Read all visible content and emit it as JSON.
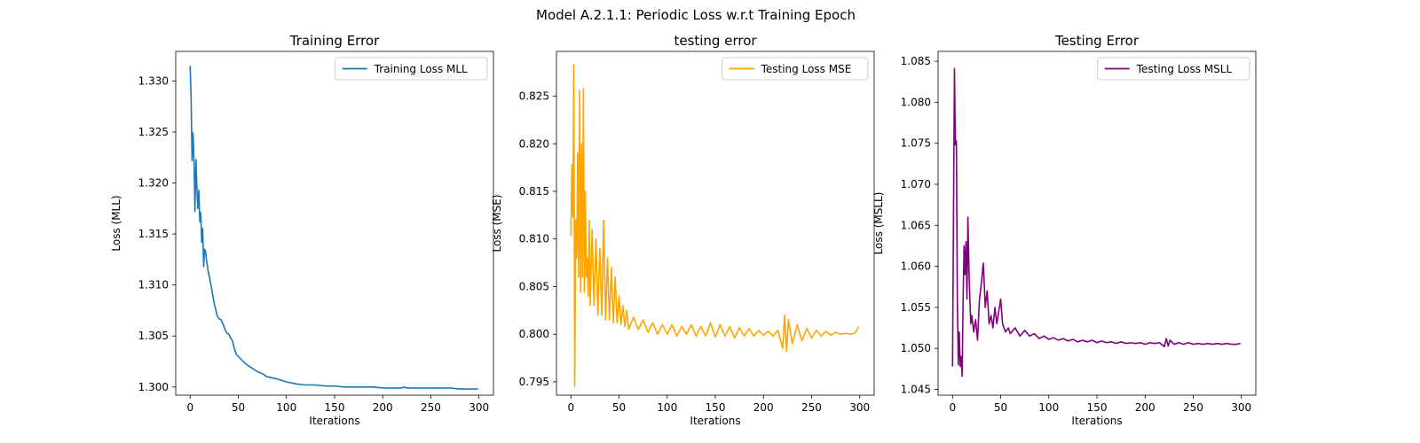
{
  "figure_title": "Model A.2.1.1: Periodic Loss w.r.t Training Epoch",
  "chart_data": [
    {
      "type": "line",
      "title": "Training Error",
      "xlabel": "Iterations",
      "ylabel": "Loss (MLL)",
      "xlim": [
        -15,
        315
      ],
      "ylim": [
        1.2992,
        1.3329
      ],
      "xticks": [
        0,
        50,
        100,
        150,
        200,
        250,
        300
      ],
      "yticks": [
        1.3,
        1.305,
        1.31,
        1.315,
        1.32,
        1.325,
        1.33
      ],
      "ytick_decimals": 3,
      "legend_position": "top-right",
      "series": [
        {
          "name": "Training Loss MLL",
          "color": "#1f77b4",
          "x": [
            0,
            1,
            2,
            3,
            4,
            5,
            6,
            7,
            8,
            9,
            10,
            11,
            12,
            13,
            14,
            15,
            16,
            17,
            18,
            19,
            20,
            22,
            24,
            25,
            26,
            28,
            30,
            32,
            33,
            34,
            36,
            38,
            40,
            42,
            44,
            46,
            48,
            50,
            55,
            60,
            65,
            70,
            75,
            80,
            90,
            100,
            110,
            120,
            130,
            140,
            150,
            160,
            170,
            180,
            190,
            200,
            210,
            220,
            222,
            225,
            230,
            240,
            250,
            260,
            270,
            280,
            290,
            299
          ],
          "values": [
            1.3315,
            1.3282,
            1.3222,
            1.3249,
            1.3222,
            1.3172,
            1.3223,
            1.3195,
            1.3175,
            1.3193,
            1.3162,
            1.3171,
            1.3142,
            1.3155,
            1.3118,
            1.3135,
            1.3133,
            1.3124,
            1.3118,
            1.3112,
            1.3108,
            1.3098,
            1.3087,
            1.3082,
            1.3078,
            1.307,
            1.3067,
            1.3066,
            1.3064,
            1.3062,
            1.3057,
            1.3053,
            1.3052,
            1.3048,
            1.3045,
            1.3037,
            1.3032,
            1.303,
            1.3025,
            1.3021,
            1.3018,
            1.3015,
            1.3013,
            1.301,
            1.3008,
            1.3005,
            1.3003,
            1.3002,
            1.3002,
            1.3001,
            1.3001,
            1.3,
            1.3,
            1.3,
            1.3,
            1.2999,
            1.2999,
            1.2999,
            1.3,
            1.2999,
            1.2999,
            1.2999,
            1.2999,
            1.2999,
            1.2999,
            1.2998,
            1.2998,
            1.2998
          ]
        }
      ]
    },
    {
      "type": "line",
      "title": "testing error",
      "xlabel": "Iterations",
      "ylabel": "Loss (MSE)",
      "xlim": [
        -15,
        315
      ],
      "ylim": [
        0.7936,
        0.8297
      ],
      "xticks": [
        0,
        50,
        100,
        150,
        200,
        250,
        300
      ],
      "yticks": [
        0.795,
        0.8,
        0.805,
        0.81,
        0.815,
        0.82,
        0.825
      ],
      "ytick_decimals": 3,
      "legend_position": "top-right",
      "series": [
        {
          "name": "Testing Loss MSE",
          "color": "#ffa500",
          "x": [
            0,
            1,
            2,
            3,
            4,
            5,
            6,
            7,
            8,
            9,
            10,
            11,
            12,
            13,
            14,
            15,
            16,
            17,
            18,
            19,
            20,
            22,
            24,
            26,
            28,
            30,
            32,
            34,
            36,
            38,
            40,
            42,
            44,
            46,
            48,
            50,
            52,
            54,
            56,
            58,
            60,
            65,
            70,
            75,
            80,
            85,
            90,
            95,
            100,
            105,
            110,
            115,
            120,
            125,
            130,
            135,
            140,
            145,
            150,
            155,
            160,
            165,
            170,
            175,
            180,
            185,
            190,
            195,
            200,
            205,
            210,
            215,
            220,
            222,
            224,
            226,
            230,
            235,
            240,
            245,
            250,
            255,
            260,
            265,
            270,
            275,
            280,
            285,
            290,
            295,
            299
          ],
          "values": [
            0.8103,
            0.8178,
            0.8123,
            0.8283,
            0.7945,
            0.812,
            0.808,
            0.819,
            0.806,
            0.8256,
            0.8044,
            0.82,
            0.806,
            0.8258,
            0.8044,
            0.815,
            0.806,
            0.808,
            0.804,
            0.812,
            0.803,
            0.811,
            0.803,
            0.81,
            0.802,
            0.809,
            0.802,
            0.812,
            0.8015,
            0.808,
            0.8015,
            0.807,
            0.8012,
            0.806,
            0.8012,
            0.804,
            0.801,
            0.803,
            0.8008,
            0.8025,
            0.8005,
            0.8018,
            0.8005,
            0.8015,
            0.8002,
            0.8012,
            0.8,
            0.801,
            0.8,
            0.801,
            0.7998,
            0.8008,
            0.8,
            0.801,
            0.7998,
            0.8008,
            0.7998,
            0.8012,
            0.7997,
            0.801,
            0.7998,
            0.8008,
            0.7996,
            0.8007,
            0.7998,
            0.8006,
            0.7998,
            0.8004,
            0.7999,
            0.8003,
            0.7998,
            0.8004,
            0.7985,
            0.802,
            0.7982,
            0.8015,
            0.799,
            0.801,
            0.7993,
            0.8006,
            0.7996,
            0.8004,
            0.7998,
            0.8003,
            0.7999,
            0.8002,
            0.8,
            0.8001,
            0.8,
            0.8001,
            0.8008
          ]
        }
      ]
    },
    {
      "type": "line",
      "title": "Testing Error",
      "xlabel": "Iterations",
      "ylabel": "Loss (MSLL)",
      "xlim": [
        -15,
        315
      ],
      "ylim": [
        1.0443,
        1.0862
      ],
      "xticks": [
        0,
        50,
        100,
        150,
        200,
        250,
        300
      ],
      "yticks": [
        1.045,
        1.05,
        1.055,
        1.06,
        1.065,
        1.07,
        1.075,
        1.08,
        1.085
      ],
      "ytick_decimals": 3,
      "legend_position": "top-right",
      "series": [
        {
          "name": "Testing Loss MSLL",
          "color": "#800080",
          "x": [
            0,
            1,
            2,
            3,
            4,
            5,
            6,
            7,
            8,
            9,
            10,
            11,
            12,
            13,
            14,
            15,
            16,
            17,
            18,
            19,
            20,
            22,
            24,
            26,
            28,
            30,
            32,
            34,
            36,
            38,
            40,
            42,
            44,
            46,
            48,
            50,
            52,
            55,
            58,
            60,
            65,
            70,
            75,
            80,
            85,
            90,
            95,
            100,
            105,
            110,
            115,
            120,
            125,
            130,
            135,
            140,
            145,
            150,
            155,
            160,
            165,
            170,
            175,
            180,
            185,
            190,
            195,
            200,
            205,
            210,
            215,
            220,
            222,
            224,
            226,
            230,
            235,
            240,
            245,
            250,
            255,
            260,
            265,
            270,
            275,
            280,
            285,
            290,
            295,
            299
          ],
          "values": [
            1.0478,
            1.066,
            1.0841,
            1.0748,
            1.0753,
            1.056,
            1.048,
            1.052,
            1.0478,
            1.049,
            1.0466,
            1.056,
            1.0625,
            1.059,
            1.063,
            1.056,
            1.066,
            1.06,
            1.056,
            1.053,
            1.054,
            1.052,
            1.0535,
            1.051,
            1.056,
            1.058,
            1.0604,
            1.055,
            1.057,
            1.053,
            1.054,
            1.0525,
            1.055,
            1.053,
            1.0545,
            1.056,
            1.053,
            1.052,
            1.0525,
            1.0518,
            1.0525,
            1.0515,
            1.0522,
            1.0515,
            1.0518,
            1.0512,
            1.0515,
            1.0511,
            1.0513,
            1.051,
            1.0512,
            1.0509,
            1.0511,
            1.0508,
            1.051,
            1.0508,
            1.051,
            1.0507,
            1.0509,
            1.0507,
            1.0508,
            1.0506,
            1.0508,
            1.0506,
            1.0507,
            1.0506,
            1.0507,
            1.0505,
            1.0507,
            1.0506,
            1.0507,
            1.0502,
            1.0512,
            1.0503,
            1.051,
            1.0505,
            1.0507,
            1.0505,
            1.0507,
            1.0505,
            1.0506,
            1.0505,
            1.0506,
            1.0505,
            1.0506,
            1.0505,
            1.0506,
            1.0505,
            1.0505,
            1.0506
          ]
        }
      ]
    }
  ]
}
